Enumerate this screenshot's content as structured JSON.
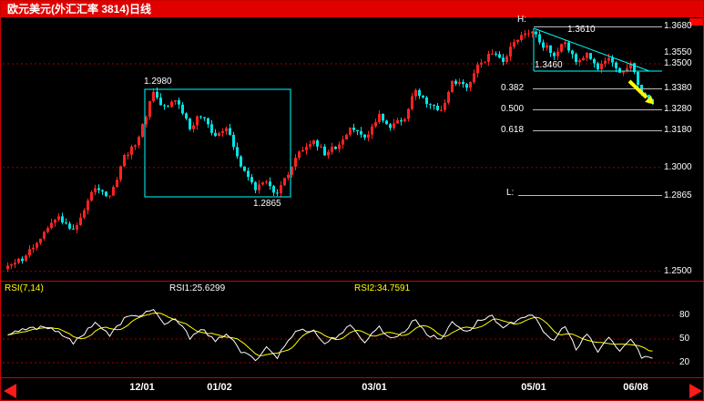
{
  "colors": {
    "background": "#000000",
    "titlebar_bg": "#e00000",
    "titlebar_text": "#ffffff",
    "up_candle": "#ff2222",
    "down_candle": "#00e5e5",
    "grid_line": "#9b0000",
    "annotation_cyan": "#00ffff",
    "annotation_yellow": "#ffff00",
    "marker_line_gray": "#bbbbbb",
    "price_tag_text": "#ffffff",
    "rsi1_line": "#ffffff",
    "rsi2_line": "#ffff00",
    "separator_red": "#c80000",
    "scroll_arrow_red": "#ff1a1a"
  },
  "titlebar": {
    "title": "欧元美元(外汇汇率 3814)日线"
  },
  "price_scale": {
    "labels": [
      "1.3680",
      "1.3550",
      "1.3500",
      "1.3380",
      "1.3280",
      "1.3180",
      "1.3000",
      "1.2865",
      "1.2500"
    ]
  },
  "rsi_scale": {
    "ticks": [
      "80",
      "50",
      "20"
    ]
  },
  "indicator_row": {
    "name": "RSI(7,14)",
    "rsi1": "RSI1:25.6299",
    "rsi2": "RSI2:34.7591"
  },
  "time_axis": [
    "12/01",
    "01/02",
    "03/01",
    "05/01",
    "06/08"
  ],
  "annotations": {
    "box_high": "1.2980",
    "box_low": "1.2865",
    "high_marker": "H:",
    "low_marker": "L:",
    "wedge_high": "1.3610",
    "wedge_support": "1.3460",
    "fib_382": "0.382",
    "fib_500": "0.500",
    "fib_618": "0.618"
  },
  "chart_data": {
    "type": "candlestick",
    "title": "欧元美元(外汇汇率 3814)日线",
    "instrument": "EUR/USD daily (欧元美元 日线)",
    "x_labels": [
      "12/01",
      "01/02",
      "03/01",
      "05/01",
      "06/08"
    ],
    "price_axis_ticks": [
      1.368,
      1.355,
      1.35,
      1.338,
      1.328,
      1.318,
      1.3,
      1.2865,
      1.25
    ],
    "grid_prices": [
      1.35,
      1.3,
      1.25
    ],
    "high": 1.368,
    "low": 1.2865,
    "box_high": 1.298,
    "box_low": 1.2865,
    "wedge_high": 1.361,
    "wedge_support": 1.346,
    "fib_levels": {
      "0.382": 1.338,
      "0.500": 1.328,
      "0.618": 1.318
    },
    "candle_count": 178,
    "price_keyframes": [
      [
        0,
        1.252
      ],
      [
        5,
        1.2575
      ],
      [
        10,
        1.2695
      ],
      [
        14,
        1.276
      ],
      [
        18,
        1.27
      ],
      [
        24,
        1.2905
      ],
      [
        28,
        1.286
      ],
      [
        32,
        1.305
      ],
      [
        36,
        1.3145
      ],
      [
        40,
        1.3365
      ],
      [
        43,
        1.3285
      ],
      [
        46,
        1.333
      ],
      [
        50,
        1.319
      ],
      [
        53,
        1.3255
      ],
      [
        57,
        1.3145
      ],
      [
        60,
        1.32
      ],
      [
        64,
        1.3015
      ],
      [
        68,
        1.2905
      ],
      [
        71,
        1.2935
      ],
      [
        74,
        1.287
      ],
      [
        77,
        1.297
      ],
      [
        80,
        1.308
      ],
      [
        84,
        1.3135
      ],
      [
        87,
        1.3065
      ],
      [
        91,
        1.311
      ],
      [
        94,
        1.319
      ],
      [
        98,
        1.3135
      ],
      [
        102,
        1.3255
      ],
      [
        105,
        1.32
      ],
      [
        109,
        1.324
      ],
      [
        112,
        1.3375
      ],
      [
        115,
        1.331
      ],
      [
        119,
        1.3275
      ],
      [
        122,
        1.3415
      ],
      [
        126,
        1.3385
      ],
      [
        129,
        1.3485
      ],
      [
        133,
        1.356
      ],
      [
        136,
        1.352
      ],
      [
        140,
        1.362
      ],
      [
        144,
        1.3668
      ],
      [
        147,
        1.359
      ],
      [
        150,
        1.355
      ],
      [
        153,
        1.361
      ],
      [
        156,
        1.3495
      ],
      [
        159,
        1.3555
      ],
      [
        162,
        1.3465
      ],
      [
        165,
        1.353
      ],
      [
        168,
        1.3455
      ],
      [
        171,
        1.3505
      ],
      [
        174,
        1.3365
      ],
      [
        177,
        1.3315
      ]
    ],
    "rsi": {
      "params": "7,14",
      "rsi1_last": 25.6299,
      "rsi2_last": 34.7591,
      "scale_ticks": [
        80,
        50,
        20
      ],
      "rsi1_keyframes": [
        [
          0,
          55
        ],
        [
          5,
          62
        ],
        [
          10,
          66
        ],
        [
          14,
          60
        ],
        [
          18,
          44
        ],
        [
          24,
          72
        ],
        [
          28,
          54
        ],
        [
          32,
          76
        ],
        [
          36,
          80
        ],
        [
          40,
          88
        ],
        [
          43,
          66
        ],
        [
          46,
          76
        ],
        [
          50,
          52
        ],
        [
          53,
          64
        ],
        [
          57,
          46
        ],
        [
          60,
          58
        ],
        [
          64,
          34
        ],
        [
          68,
          24
        ],
        [
          71,
          40
        ],
        [
          74,
          27
        ],
        [
          77,
          48
        ],
        [
          80,
          63
        ],
        [
          84,
          60
        ],
        [
          87,
          44
        ],
        [
          91,
          56
        ],
        [
          94,
          66
        ],
        [
          98,
          47
        ],
        [
          102,
          66
        ],
        [
          105,
          50
        ],
        [
          109,
          60
        ],
        [
          112,
          76
        ],
        [
          115,
          56
        ],
        [
          119,
          49
        ],
        [
          122,
          73
        ],
        [
          126,
          58
        ],
        [
          129,
          72
        ],
        [
          133,
          80
        ],
        [
          136,
          62
        ],
        [
          140,
          76
        ],
        [
          144,
          82
        ],
        [
          147,
          58
        ],
        [
          150,
          48
        ],
        [
          153,
          68
        ],
        [
          156,
          36
        ],
        [
          159,
          56
        ],
        [
          162,
          34
        ],
        [
          165,
          52
        ],
        [
          168,
          35
        ],
        [
          171,
          50
        ],
        [
          174,
          28
        ],
        [
          177,
          25.6
        ]
      ]
    }
  }
}
